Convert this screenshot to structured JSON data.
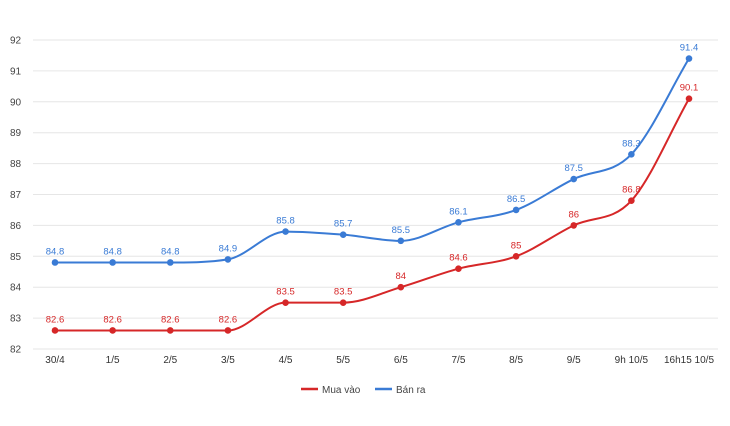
{
  "chart_data": {
    "type": "line",
    "title": "",
    "xlabel": "",
    "ylabel": "",
    "categories": [
      "30/4",
      "1/5",
      "2/5",
      "3/5",
      "4/5",
      "5/5",
      "6/5",
      "7/5",
      "8/5",
      "9/5",
      "9h 10/5",
      "16h15 10/5"
    ],
    "yticks": [
      "82",
      "83",
      "84",
      "85",
      "86",
      "87",
      "88",
      "89",
      "90",
      "91",
      "92"
    ],
    "ylim": [
      82,
      92
    ],
    "grid": true,
    "legend_position": "bottom",
    "series": [
      {
        "name": "Mua vào",
        "color": "#d62728",
        "values": [
          82.6,
          82.6,
          82.6,
          82.6,
          83.5,
          83.5,
          84,
          84.6,
          85,
          86,
          86.8,
          90.1
        ],
        "labels": [
          "82.6",
          "82.6",
          "82.6",
          "82.6",
          "83.5",
          "83.5",
          "84",
          "84.6",
          "85",
          "86",
          "86.8",
          "90.1"
        ]
      },
      {
        "name": "Bán ra",
        "color": "#3a7bd5",
        "values": [
          84.8,
          84.8,
          84.8,
          84.9,
          85.8,
          85.7,
          85.5,
          86.1,
          86.5,
          87.5,
          88.3,
          91.4
        ],
        "labels": [
          "84.8",
          "84.8",
          "84.8",
          "84.9",
          "85.8",
          "85.7",
          "85.5",
          "86.1",
          "86.5",
          "87.5",
          "88.3",
          "91.4"
        ]
      }
    ]
  }
}
